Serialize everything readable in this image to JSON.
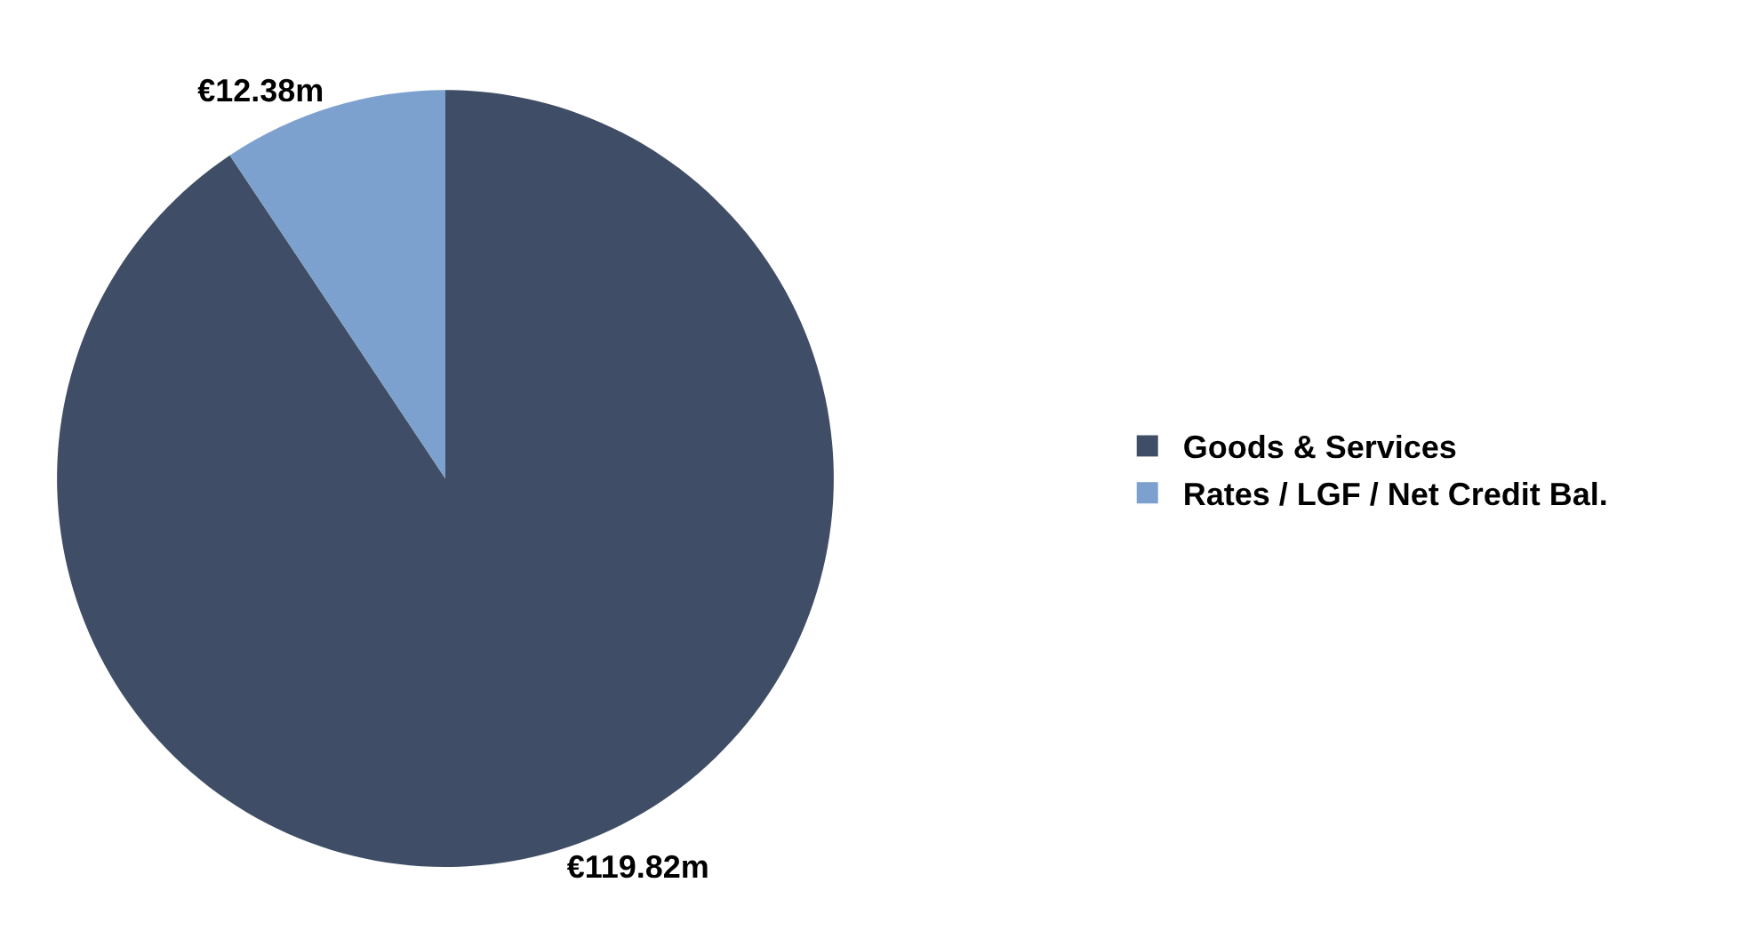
{
  "chart_data": {
    "type": "pie",
    "categories": [
      "Goods & Services",
      "Rates / LGF / Net Credit Bal."
    ],
    "values": [
      119.82,
      12.38
    ],
    "colors": [
      "#3f4e66",
      "#7da1cf"
    ],
    "value_labels": [
      "€119.82m",
      "€12.38m"
    ],
    "legend": "right"
  }
}
